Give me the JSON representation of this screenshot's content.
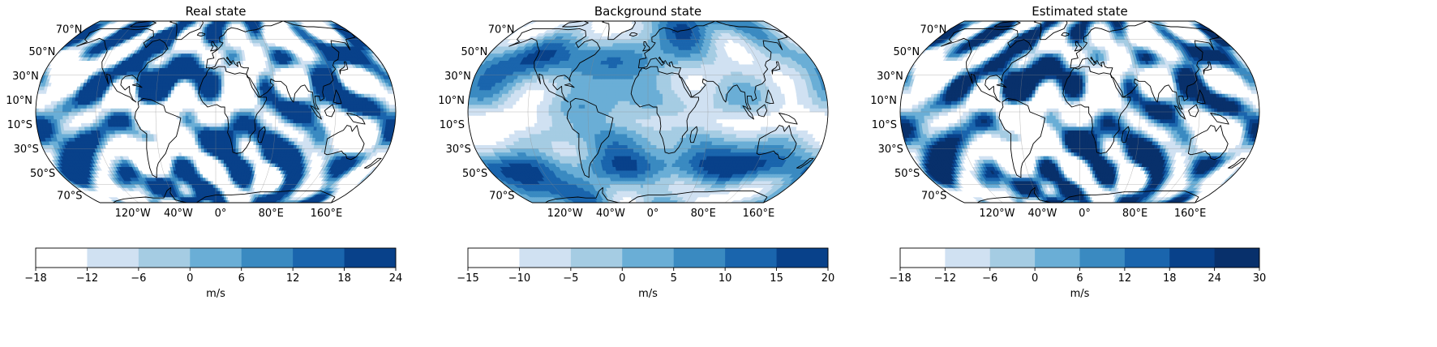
{
  "units": "m/s",
  "lat_labels": [
    "70°N",
    "50°N",
    "30°N",
    "10°N",
    "10°S",
    "30°S",
    "50°S",
    "70°S"
  ],
  "lon_labels": [
    "120°W",
    "40°W",
    "0°",
    "80°E",
    "160°E"
  ],
  "chart_data": [
    {
      "type": "heatmap",
      "title": "Real state",
      "projection": "Robinson (global)",
      "colorbar": {
        "label": "m/s",
        "ticks": [
          -18,
          -12,
          -6,
          0,
          6,
          12,
          18,
          24
        ],
        "colors": [
          "#ffffff",
          "#d0e1f2",
          "#a5cce3",
          "#6aaed6",
          "#3a8ac1",
          "#1a65ad",
          "#08418a"
        ]
      },
      "lat_labels": [
        "70°N",
        "50°N",
        "30°N",
        "10°N",
        "10°S",
        "30°S",
        "50°S",
        "70°S"
      ],
      "lon_labels": [
        "120°W",
        "40°W",
        "0°",
        "80°E",
        "160°E"
      ]
    },
    {
      "type": "heatmap",
      "title": "Background state",
      "projection": "Robinson (global)",
      "colorbar": {
        "label": "m/s",
        "ticks": [
          -15,
          -10,
          -5,
          0,
          5,
          10,
          15,
          20
        ],
        "colors": [
          "#ffffff",
          "#d0e1f2",
          "#a5cce3",
          "#6aaed6",
          "#3a8ac1",
          "#1a65ad",
          "#08418a"
        ]
      },
      "lat_labels": [
        "70°N",
        "50°N",
        "30°N",
        "10°N",
        "10°S",
        "30°S",
        "50°S",
        "70°S"
      ],
      "lon_labels": [
        "120°W",
        "40°W",
        "0°",
        "80°E",
        "160°E"
      ]
    },
    {
      "type": "heatmap",
      "title": "Estimated state",
      "projection": "Robinson (global)",
      "colorbar": {
        "label": "m/s",
        "ticks": [
          -18,
          -12,
          -6,
          0,
          6,
          12,
          18,
          24,
          30
        ],
        "colors": [
          "#ffffff",
          "#d0e1f2",
          "#a5cce3",
          "#6aaed6",
          "#3a8ac1",
          "#1a65ad",
          "#08418a",
          "#08306b"
        ]
      },
      "lat_labels": [
        "70°N",
        "50°N",
        "30°N",
        "10°N",
        "10°S",
        "30°S",
        "50°S",
        "70°S"
      ],
      "lon_labels": [
        "120°W",
        "40°W",
        "0°",
        "80°E",
        "160°E"
      ]
    }
  ]
}
